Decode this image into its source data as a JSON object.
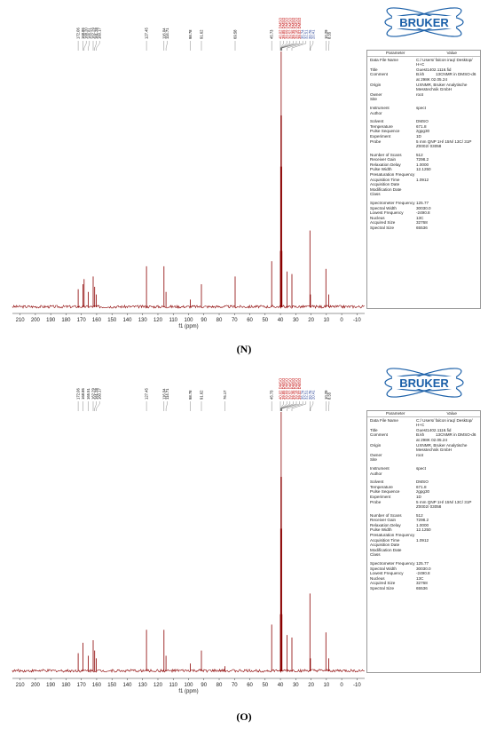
{
  "panels": [
    {
      "id": "N",
      "caption": "(N)",
      "logo_text": "BRUKER",
      "table_header": [
        "Parameter",
        "Value"
      ],
      "parameters": [
        {
          "name": "Data File Name",
          "value": "C:/ Users/ falcon iraq/ Desktop/ H+C"
        },
        {
          "name": "Title",
          "value": "Guest1402.1116.fid"
        },
        {
          "name": "Comment",
          "value": "B.kh          13CNMR in DMSO-d6 at 298K 02.05.24"
        },
        {
          "name": "Origin",
          "value": "UXNMR, Bruker Analytische Messtechnik GmbH"
        },
        {
          "name": "Owner",
          "value": "root"
        },
        {
          "name": "Site",
          "value": ""
        },
        {
          "name": "Instrument",
          "value": "spect"
        },
        {
          "name": "Author",
          "value": ""
        },
        {
          "name": "Solvent",
          "value": "DMSO"
        },
        {
          "name": "Temperature",
          "value": "671.8"
        },
        {
          "name": "Pulse Sequence",
          "value": "zgpg30"
        },
        {
          "name": "Experiment",
          "value": "1D"
        },
        {
          "name": "Probe",
          "value": "5 mm QNP 1H/ 15N/ 13C/ 31P Z0002/ 03058"
        },
        {
          "name": "Number of Scans",
          "value": "512"
        },
        {
          "name": "Receiver Gain",
          "value": "7298.2"
        },
        {
          "name": "Relaxation Delay",
          "value": "1.0000"
        },
        {
          "name": "Pulse Width",
          "value": "12.1250"
        },
        {
          "name": "Presaturation Frequency",
          "value": ""
        },
        {
          "name": "Acquisition Time",
          "value": "1.0912"
        },
        {
          "name": "Acquisition Date",
          "value": ""
        },
        {
          "name": "Modification Date",
          "value": ""
        },
        {
          "name": "Class",
          "value": ""
        },
        {
          "name": "Spectrometer Frequency",
          "value": "125.77"
        },
        {
          "name": "Spectral Width",
          "value": "30030.0"
        },
        {
          "name": "Lowest Frequency",
          "value": "-2490.8"
        },
        {
          "name": "Nucleus",
          "value": "13C"
        },
        {
          "name": "Acquired Size",
          "value": "32768"
        },
        {
          "name": "Spectral Size",
          "value": "65536"
        }
      ],
      "chart_data": {
        "type": "line",
        "xlabel": "f1 (ppm)",
        "xlim": [
          215,
          -15
        ],
        "x_reversed": true,
        "xticks": [
          210,
          200,
          190,
          180,
          170,
          160,
          150,
          140,
          130,
          120,
          110,
          100,
          90,
          80,
          70,
          60,
          50,
          40,
          30,
          20,
          10,
          0,
          -10
        ],
        "xtick_labels": [
          "210",
          "200",
          "190",
          "180",
          "170",
          "160",
          "150",
          "140",
          "130",
          "120",
          "110",
          "100",
          "90",
          "80",
          "70",
          "60",
          "50",
          "40",
          "30",
          "20",
          "10",
          "0",
          "-10"
        ],
        "peaks": [
          {
            "ppm": 172.06,
            "label": "172.06",
            "height": 0.07,
            "color": "#000000"
          },
          {
            "ppm": 165.51,
            "label": "165.51",
            "height": 0.06,
            "color": "#000000"
          },
          {
            "ppm": 168.2,
            "label": "168.20",
            "height": 0.11,
            "color": "#000000"
          },
          {
            "ppm": 168.86,
            "label": "168.86",
            "height": 0.09,
            "color": "#000000"
          },
          {
            "ppm": 162.29,
            "label": "162.29",
            "height": 0.12,
            "color": "#000000"
          },
          {
            "ppm": 161.28,
            "label": "161.28",
            "height": 0.08,
            "color": "#000000"
          },
          {
            "ppm": 160.17,
            "label": "160.17",
            "height": 0.05,
            "color": "#000000"
          },
          {
            "ppm": 127.45,
            "label": "127.45",
            "height": 0.16,
            "color": "#000000"
          },
          {
            "ppm": 116.04,
            "label": "116.04",
            "height": 0.16,
            "color": "#000000"
          },
          {
            "ppm": 114.71,
            "label": "114.71",
            "height": 0.06,
            "color": "#000000"
          },
          {
            "ppm": 98.78,
            "label": "98.78",
            "height": 0.03,
            "color": "#000000"
          },
          {
            "ppm": 91.62,
            "label": "91.62",
            "height": 0.09,
            "color": "#000000"
          },
          {
            "ppm": 69.58,
            "label": "69.58",
            "height": 0.12,
            "color": "#000000"
          },
          {
            "ppm": 45.73,
            "label": "45.73",
            "height": 0.18,
            "color": "#000000"
          },
          {
            "ppm": 40.02,
            "label": "40.02 DMSO",
            "height": 0.22,
            "color": "#c00000"
          },
          {
            "ppm": 39.85,
            "label": "39.85 DMSO",
            "height": 0.55,
            "color": "#c00000"
          },
          {
            "ppm": 39.69,
            "label": "39.69 DMSO",
            "height": 0.75,
            "color": "#c00000"
          },
          {
            "ppm": 39.52,
            "label": "39.52 DMSO",
            "height": 1.0,
            "color": "#c00000"
          },
          {
            "ppm": 39.35,
            "label": "39.35 DMSO",
            "height": 0.75,
            "color": "#c00000"
          },
          {
            "ppm": 39.18,
            "label": "39.18 DMSO",
            "height": 0.55,
            "color": "#c00000"
          },
          {
            "ppm": 39.02,
            "label": "39.02 DMSO",
            "height": 0.22,
            "color": "#c00000"
          },
          {
            "ppm": 35.74,
            "label": "35.74",
            "height": 0.14,
            "color": "#1f3a93"
          },
          {
            "ppm": 32.51,
            "label": "32.51",
            "height": 0.13,
            "color": "#1f3a93"
          },
          {
            "ppm": 20.76,
            "label": "20.76",
            "height": 0.3,
            "color": "#1f3a93"
          },
          {
            "ppm": 20.41,
            "label": "20.41",
            "height": 0.05,
            "color": "#1f3a93"
          },
          {
            "ppm": 10.29,
            "label": "10.29",
            "height": 0.15,
            "color": "#000000"
          },
          {
            "ppm": 8.55,
            "label": "8.55",
            "height": 0.05,
            "color": "#000000"
          }
        ]
      }
    },
    {
      "id": "O",
      "caption": "(O)",
      "logo_text": "BRUKER",
      "table_header": [
        "Parameter",
        "Value"
      ],
      "parameters": [
        {
          "name": "Data File Name",
          "value": "C:/ Users/ falcon iraq/ Desktop/ H+C"
        },
        {
          "name": "Title",
          "value": "Guest1402.1116.fid"
        },
        {
          "name": "Comment",
          "value": "B.kh          13CNMR in DMSO-d6 at 298K 02.05.24"
        },
        {
          "name": "Origin",
          "value": "UXNMR, Bruker Analytische Messtechnik GmbH"
        },
        {
          "name": "Owner",
          "value": "root"
        },
        {
          "name": "Site",
          "value": ""
        },
        {
          "name": "Instrument",
          "value": "spect"
        },
        {
          "name": "Author",
          "value": ""
        },
        {
          "name": "Solvent",
          "value": "DMSO"
        },
        {
          "name": "Temperature",
          "value": "671.8"
        },
        {
          "name": "Pulse Sequence",
          "value": "zgpg30"
        },
        {
          "name": "Experiment",
          "value": "1D"
        },
        {
          "name": "Probe",
          "value": "5 mm QNP 1H/ 15N/ 13C/ 31P Z0002/ 03058"
        },
        {
          "name": "Number of Scans",
          "value": "512"
        },
        {
          "name": "Receiver Gain",
          "value": "7298.2"
        },
        {
          "name": "Relaxation Delay",
          "value": "1.0000"
        },
        {
          "name": "Pulse Width",
          "value": "12.1250"
        },
        {
          "name": "Presaturation Frequency",
          "value": ""
        },
        {
          "name": "Acquisition Time",
          "value": "1.0912"
        },
        {
          "name": "Acquisition Date",
          "value": ""
        },
        {
          "name": "Modification Date",
          "value": ""
        },
        {
          "name": "Class",
          "value": ""
        },
        {
          "name": "Spectrometer Frequency",
          "value": "125.77"
        },
        {
          "name": "Spectral Width",
          "value": "30030.0"
        },
        {
          "name": "Lowest Frequency",
          "value": "-2490.8"
        },
        {
          "name": "Nucleus",
          "value": "13C"
        },
        {
          "name": "Acquired Size",
          "value": "32768"
        },
        {
          "name": "Spectral Size",
          "value": "65536"
        }
      ],
      "chart_data": {
        "type": "line",
        "xlabel": "f1 (ppm)",
        "xlim": [
          215,
          -15
        ],
        "x_reversed": true,
        "xticks": [
          210,
          200,
          190,
          180,
          170,
          160,
          150,
          140,
          130,
          120,
          110,
          100,
          90,
          80,
          70,
          60,
          50,
          40,
          30,
          20,
          10,
          0,
          -10
        ],
        "xtick_labels": [
          "210",
          "200",
          "190",
          "180",
          "170",
          "160",
          "150",
          "140",
          "130",
          "120",
          "110",
          "100",
          "90",
          "80",
          "70",
          "60",
          "50",
          "40",
          "30",
          "20",
          "10",
          "0",
          "-10"
        ],
        "peaks": [
          {
            "ppm": 172.06,
            "label": "172.06",
            "height": 0.07,
            "color": "#000000"
          },
          {
            "ppm": 165.51,
            "label": "165.51",
            "height": 0.06,
            "color": "#000000"
          },
          {
            "ppm": 168.86,
            "label": "168.86",
            "height": 0.11,
            "color": "#000000"
          },
          {
            "ppm": 162.29,
            "label": "162.29",
            "height": 0.12,
            "color": "#000000"
          },
          {
            "ppm": 161.28,
            "label": "161.28",
            "height": 0.08,
            "color": "#000000"
          },
          {
            "ppm": 160.17,
            "label": "160.17",
            "height": 0.05,
            "color": "#000000"
          },
          {
            "ppm": 127.45,
            "label": "127.45",
            "height": 0.16,
            "color": "#000000"
          },
          {
            "ppm": 116.04,
            "label": "116.04",
            "height": 0.16,
            "color": "#000000"
          },
          {
            "ppm": 114.71,
            "label": "114.71",
            "height": 0.06,
            "color": "#000000"
          },
          {
            "ppm": 98.78,
            "label": "98.78",
            "height": 0.03,
            "color": "#000000"
          },
          {
            "ppm": 91.62,
            "label": "91.62",
            "height": 0.08,
            "color": "#000000"
          },
          {
            "ppm": 76.17,
            "label": "76.17",
            "height": 0.02,
            "color": "#000000"
          },
          {
            "ppm": 45.73,
            "label": "45.73",
            "height": 0.18,
            "color": "#000000"
          },
          {
            "ppm": 40.02,
            "label": "40.02 DMSO",
            "height": 0.22,
            "color": "#c00000"
          },
          {
            "ppm": 39.85,
            "label": "39.85 DMSO",
            "height": 0.55,
            "color": "#c00000"
          },
          {
            "ppm": 39.69,
            "label": "39.69 DMSO",
            "height": 0.75,
            "color": "#c00000"
          },
          {
            "ppm": 39.52,
            "label": "39.52 DMSO",
            "height": 1.0,
            "color": "#c00000"
          },
          {
            "ppm": 39.35,
            "label": "39.35 DMSO",
            "height": 0.75,
            "color": "#c00000"
          },
          {
            "ppm": 39.18,
            "label": "39.18 DMSO",
            "height": 0.55,
            "color": "#c00000"
          },
          {
            "ppm": 39.02,
            "label": "39.02 DMSO",
            "height": 0.22,
            "color": "#c00000"
          },
          {
            "ppm": 35.74,
            "label": "35.74",
            "height": 0.14,
            "color": "#1f3a93"
          },
          {
            "ppm": 32.51,
            "label": "32.51",
            "height": 0.13,
            "color": "#1f3a93"
          },
          {
            "ppm": 20.76,
            "label": "20.76",
            "height": 0.3,
            "color": "#1f3a93"
          },
          {
            "ppm": 20.41,
            "label": "20.41",
            "height": 0.05,
            "color": "#1f3a93"
          },
          {
            "ppm": 10.29,
            "label": "10.29",
            "height": 0.15,
            "color": "#000000"
          },
          {
            "ppm": 8.55,
            "label": "8.55",
            "height": 0.05,
            "color": "#000000"
          }
        ]
      }
    }
  ],
  "colors": {
    "spectrum": "#8b0000",
    "dmso": "#c00000",
    "aliphatic_labels": "#1f3a93",
    "logo_blue": "#1a5fa8"
  }
}
